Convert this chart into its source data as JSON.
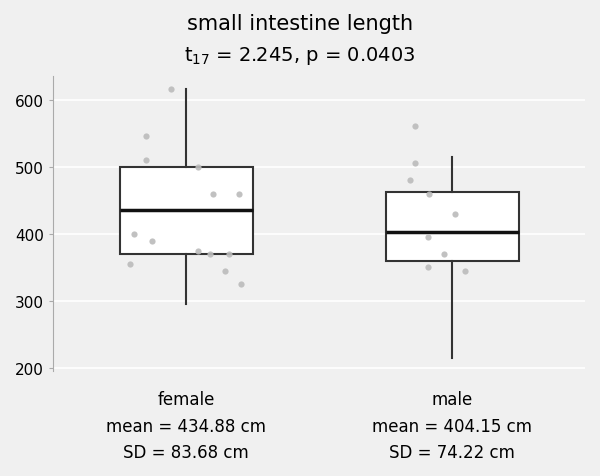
{
  "title_line1": "small intestine length",
  "title_line2": "t$_{17}$ = 2.245, p = 0.0403",
  "categories": [
    "female",
    "male"
  ],
  "female_stats": {
    "median": 435,
    "q1": 370,
    "q3": 500,
    "whisker_low": 295,
    "whisker_high": 615,
    "mean": 434.88,
    "sd": 83.68,
    "jitter_y": [
      615,
      460,
      460,
      500,
      545,
      510,
      400,
      370,
      375,
      370,
      355,
      325,
      345,
      390
    ]
  },
  "male_stats": {
    "median": 403,
    "q1": 360,
    "q3": 462,
    "whisker_low": 215,
    "whisker_high": 515,
    "mean": 404.15,
    "sd": 74.22,
    "jitter_y": [
      505,
      560,
      460,
      430,
      370,
      350,
      345,
      480,
      395
    ]
  },
  "ylim": [
    195,
    635
  ],
  "yticks": [
    200,
    300,
    400,
    500,
    600
  ],
  "box_color": "white",
  "box_edgecolor": "#333333",
  "median_color": "#111111",
  "whisker_color": "#333333",
  "jitter_color": "#bbbbbb",
  "bg_color": "#f0f0f0",
  "grid_color": "white",
  "label_fontsize": 12,
  "tick_fontsize": 11,
  "title_fontsize": 15,
  "subtitle_fontsize": 14,
  "female_label": "female\nmean = 434.88 cm\nSD = 83.68 cm",
  "male_label": "male\nmean = 404.15 cm\nSD = 74.22 cm"
}
